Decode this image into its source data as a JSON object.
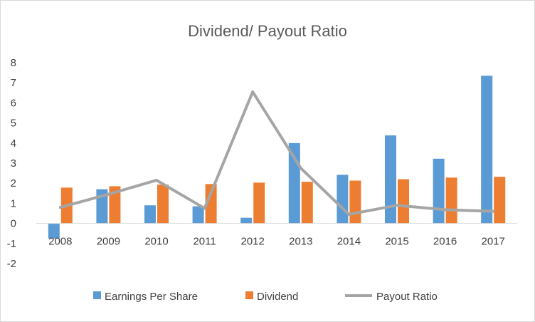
{
  "chart_data": {
    "type": "bar",
    "title": "Dividend/ Payout Ratio",
    "xlabel": "",
    "ylabel": "",
    "categories": [
      "2008",
      "2009",
      "2010",
      "2011",
      "2012",
      "2013",
      "2014",
      "2015",
      "2016",
      "2017"
    ],
    "ylim": [
      -2,
      8
    ],
    "yticks": [
      "-2",
      "-1",
      "0",
      "1",
      "2",
      "3",
      "4",
      "5",
      "6",
      "7",
      "8"
    ],
    "grid": false,
    "legend_position": "bottom",
    "series": [
      {
        "name": "Earnings Per Share",
        "type": "bar",
        "color": "#5b9bd5",
        "values": [
          -0.75,
          1.7,
          0.9,
          0.85,
          0.28,
          4.0,
          2.42,
          4.38,
          3.22,
          7.35
        ]
      },
      {
        "name": "Dividend",
        "type": "bar",
        "color": "#ed7d31",
        "values": [
          1.78,
          1.85,
          1.93,
          1.96,
          2.03,
          2.07,
          2.13,
          2.2,
          2.28,
          2.32
        ]
      },
      {
        "name": "Payout Ratio",
        "type": "line",
        "color": "#a5a5a5",
        "values": [
          0.8,
          1.45,
          2.15,
          0.75,
          6.55,
          2.75,
          0.45,
          0.9,
          0.68,
          0.6
        ]
      }
    ]
  }
}
